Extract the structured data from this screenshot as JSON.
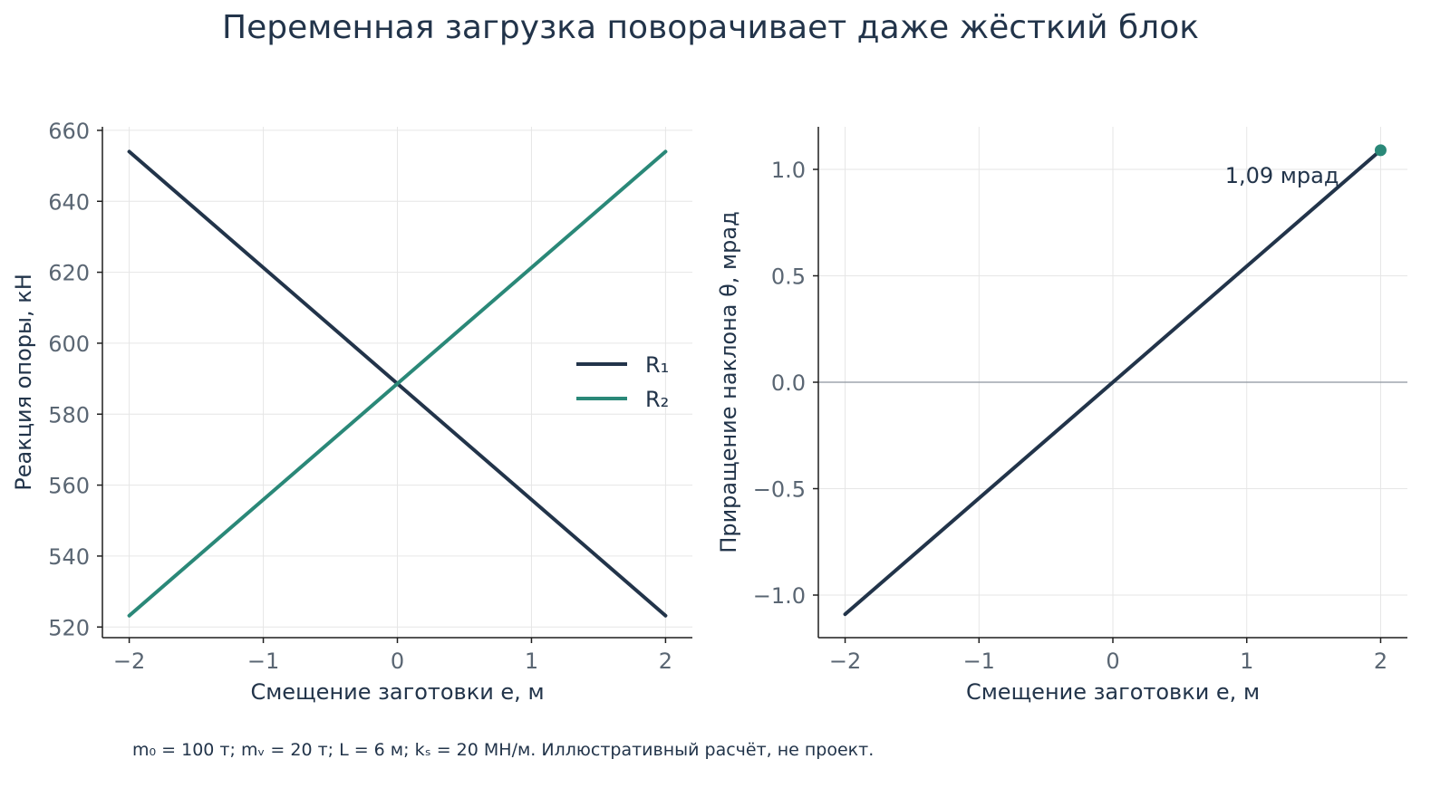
{
  "title": "Переменная загрузка поворачивает даже жёсткий блок",
  "footnote": "m₀ = 100 т; mᵥ = 20 т; L = 6 м; kₛ = 20 МН/м. Иллюстративный расчёт, не проект.",
  "chart_data": [
    {
      "type": "line",
      "xlabel": "Смещение заготовки e, м",
      "ylabel": "Реакция опоры, кН",
      "xlim": [
        -2.2,
        2.2
      ],
      "ylim": [
        517,
        661
      ],
      "xticks": [
        -2,
        -1,
        0,
        1,
        2
      ],
      "xtick_labels": [
        "−2",
        "−1",
        "0",
        "1",
        "2"
      ],
      "yticks": [
        520,
        540,
        560,
        580,
        600,
        620,
        640,
        660
      ],
      "ytick_labels": [
        "520",
        "540",
        "560",
        "580",
        "600",
        "620",
        "640",
        "660"
      ],
      "grid": true,
      "legend": "center-right",
      "series": [
        {
          "name": "R₁",
          "color": "#22344a",
          "x": [
            -2,
            2
          ],
          "y": [
            654.0,
            523.2
          ]
        },
        {
          "name": "R₂",
          "color": "#2a8878",
          "x": [
            -2,
            2
          ],
          "y": [
            523.2,
            654.0
          ]
        }
      ]
    },
    {
      "type": "line",
      "xlabel": "Смещение заготовки e, м",
      "ylabel": "Приращение наклона θ, мрад",
      "xlim": [
        -2.2,
        2.2
      ],
      "ylim": [
        -1.2,
        1.2
      ],
      "xticks": [
        -2,
        -1,
        0,
        1,
        2
      ],
      "xtick_labels": [
        "−2",
        "−1",
        "0",
        "1",
        "2"
      ],
      "yticks": [
        -1.0,
        -0.5,
        0.0,
        0.5,
        1.0
      ],
      "ytick_labels": [
        "−1.0",
        "−0.5",
        "0.0",
        "0.5",
        "1.0"
      ],
      "grid": true,
      "zero_line": true,
      "series": [
        {
          "color": "#22344a",
          "x": [
            -2,
            2
          ],
          "y": [
            -1.09,
            1.09
          ]
        }
      ],
      "marker": {
        "x": 2,
        "y": 1.09,
        "color": "#2a8878"
      },
      "annotation": {
        "text": "1,09 мрад",
        "x": 2,
        "y": 1.09
      }
    }
  ]
}
